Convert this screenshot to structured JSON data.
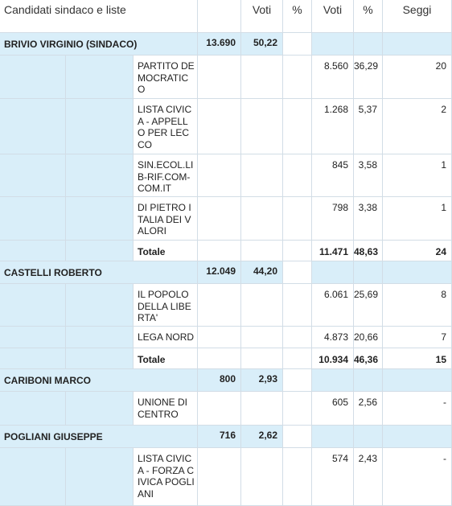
{
  "header": {
    "candidati": "Candidati sindaco e liste",
    "voti1": "Voti",
    "perc1": "%",
    "voti2": "Voti",
    "perc2": "%",
    "seggi": "Seggi"
  },
  "candidates": [
    {
      "name": "BRIVIO VIRGINIO (SINDACO)",
      "voti": "13.690",
      "perc": "50,22",
      "lists": [
        {
          "name": "PARTITO DEMOCRATICO",
          "voti": "8.560",
          "perc": "36,29",
          "seggi": "20"
        },
        {
          "name": "LISTA CIVICA - APPELLO PER LECCO",
          "voti": "1.268",
          "perc": "5,37",
          "seggi": "2"
        },
        {
          "name": "SIN.ECOL.LIB-RIF.COM-COM.IT",
          "voti": "845",
          "perc": "3,58",
          "seggi": "1"
        },
        {
          "name": "DI PIETRO ITALIA DEI VALORI",
          "voti": "798",
          "perc": "3,38",
          "seggi": "1"
        }
      ],
      "total": {
        "label": "Totale",
        "voti": "11.471",
        "perc": "48,63",
        "seggi": "24"
      }
    },
    {
      "name": "CASTELLI ROBERTO",
      "voti": "12.049",
      "perc": "44,20",
      "lists": [
        {
          "name": "IL POPOLO DELLA LIBERTA'",
          "voti": "6.061",
          "perc": "25,69",
          "seggi": "8"
        },
        {
          "name": "LEGA NORD",
          "voti": "4.873",
          "perc": "20,66",
          "seggi": "7"
        }
      ],
      "total": {
        "label": "Totale",
        "voti": "10.934",
        "perc": "46,36",
        "seggi": "15"
      }
    },
    {
      "name": "CARIBONI MARCO",
      "voti": "800",
      "perc": "2,93",
      "lists": [
        {
          "name": "UNIONE DI CENTRO",
          "voti": "605",
          "perc": "2,56",
          "seggi": "-"
        }
      ]
    },
    {
      "name": "POGLIANI GIUSEPPE",
      "voti": "716",
      "perc": "2,62",
      "lists": [
        {
          "name": "LISTA CIVICA - FORZA CIVICA POGLIANI",
          "voti": "574",
          "perc": "2,43",
          "seggi": "-"
        }
      ]
    }
  ]
}
